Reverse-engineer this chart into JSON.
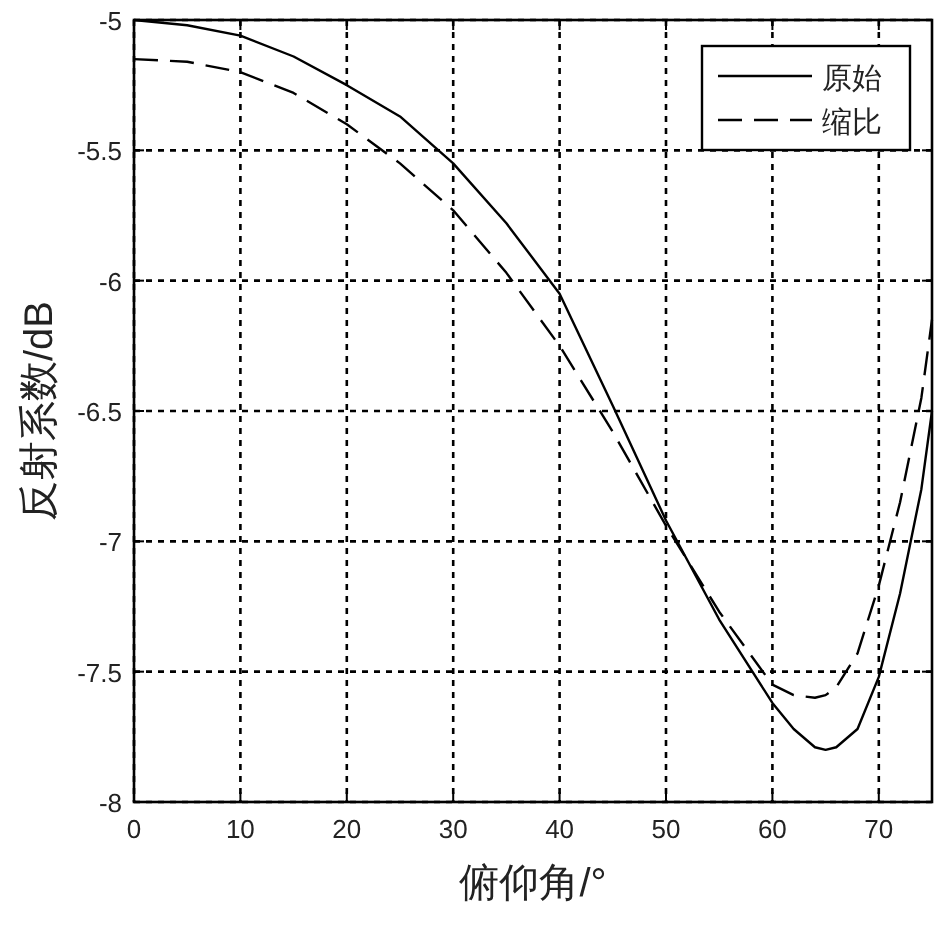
{
  "chart_data": {
    "type": "line",
    "xlabel": "俯仰角/°",
    "ylabel": "反射系数/dB",
    "x": [
      0,
      5,
      10,
      15,
      20,
      25,
      30,
      35,
      40,
      45,
      50,
      55,
      60,
      62,
      64,
      65,
      66,
      68,
      70,
      72,
      74,
      75
    ],
    "series": [
      {
        "name": "原始",
        "color": "#000000",
        "line_style": "solid",
        "values": [
          -5.0,
          -5.02,
          -5.06,
          -5.14,
          -5.25,
          -5.37,
          -5.55,
          -5.78,
          -6.05,
          -6.48,
          -6.92,
          -7.3,
          -7.62,
          -7.72,
          -7.79,
          -7.8,
          -7.79,
          -7.72,
          -7.52,
          -7.2,
          -6.8,
          -6.5
        ]
      },
      {
        "name": "缩比",
        "color": "#000000",
        "line_style": "dashed",
        "values": [
          -5.15,
          -5.16,
          -5.2,
          -5.28,
          -5.4,
          -5.55,
          -5.73,
          -5.97,
          -6.25,
          -6.58,
          -6.94,
          -7.27,
          -7.55,
          -7.59,
          -7.6,
          -7.59,
          -7.56,
          -7.43,
          -7.17,
          -6.85,
          -6.45,
          -6.15
        ]
      }
    ],
    "xlim": [
      0,
      75
    ],
    "ylim": [
      -8,
      -5
    ],
    "xticks": [
      0,
      10,
      20,
      30,
      40,
      50,
      60,
      70
    ],
    "yticks": [
      -8,
      -7.5,
      -7,
      -6.5,
      -6,
      -5.5,
      -5
    ],
    "grid": true,
    "legend": "top right",
    "marker": "none"
  }
}
